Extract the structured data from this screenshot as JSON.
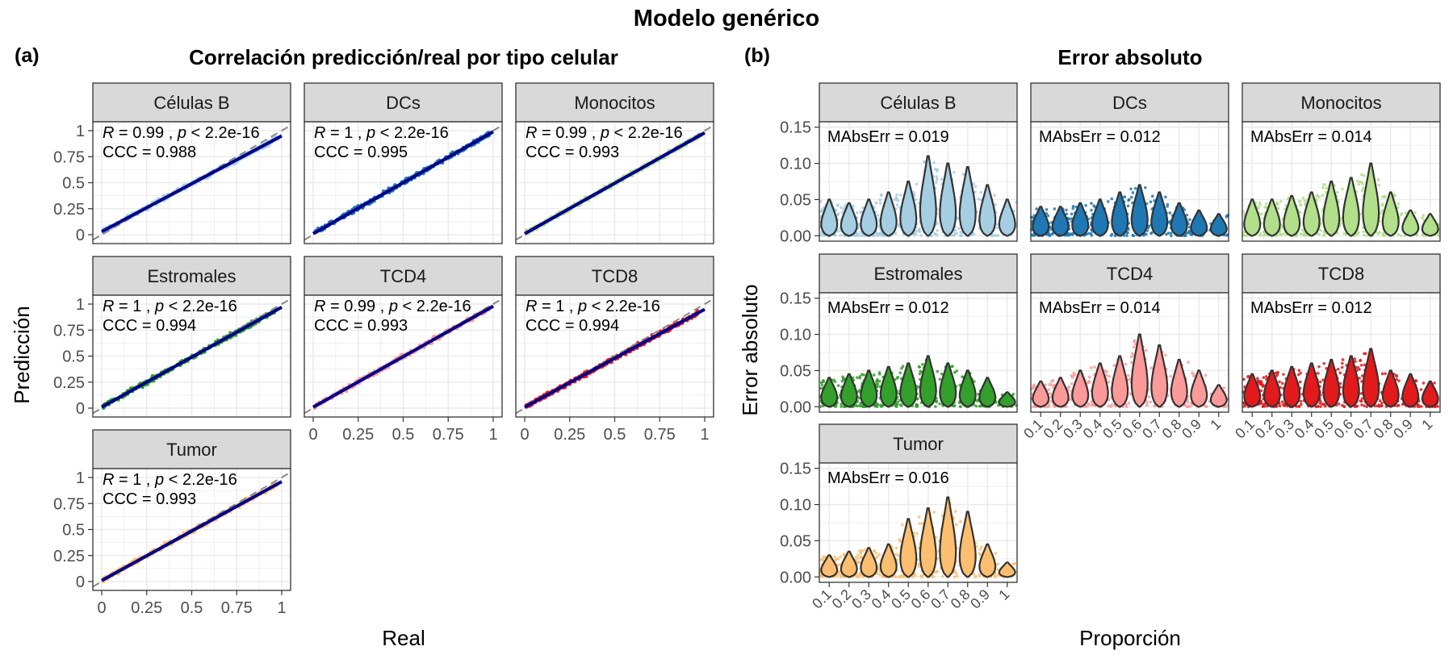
{
  "figure": {
    "title": "Modelo genérico",
    "panel_a_tag": "(a)",
    "panel_b_tag": "(b)"
  },
  "chart_data": [
    {
      "type": "scatter",
      "title": "Correlación predicción/real por tipo celular",
      "xlabel": "Real",
      "ylabel": "Predicción",
      "xlim": [
        0,
        1
      ],
      "ylim": [
        0,
        1
      ],
      "tick_labels": [
        "0",
        "0.25",
        "0.5",
        "0.75",
        "1"
      ],
      "grid": true,
      "identity_line": "dashed grey",
      "fit_line_color": "#00008b",
      "facets": [
        {
          "name": "Células B",
          "color": "#a6cee3",
          "stat_r": "0.99",
          "stat_p": "2.2e-16",
          "ccc": "CCC = 0.988",
          "fit": [
            0.03,
            0.92
          ]
        },
        {
          "name": "DCs",
          "color": "#1f78b4",
          "stat_r": "1",
          "stat_p": "2.2e-16",
          "ccc": "CCC = 0.995",
          "fit": [
            0.01,
            0.98
          ]
        },
        {
          "name": "Monocitos",
          "color": "#b2df8a",
          "stat_r": "0.99",
          "stat_p": "2.2e-16",
          "ccc": "CCC = 0.993",
          "fit": [
            0.01,
            0.97
          ]
        },
        {
          "name": "Estromales",
          "color": "#33a02c",
          "stat_r": "1",
          "stat_p": "2.2e-16",
          "ccc": "CCC = 0.994",
          "fit": [
            0.01,
            0.96
          ]
        },
        {
          "name": "TCD4",
          "color": "#fb9a99",
          "stat_r": "0.99",
          "stat_p": "2.2e-16",
          "ccc": "CCC = 0.993",
          "fit": [
            0.01,
            0.97
          ]
        },
        {
          "name": "TCD8",
          "color": "#e31a1c",
          "stat_r": "1",
          "stat_p": "2.2e-16",
          "ccc": "CCC = 0.994",
          "fit": [
            0.01,
            0.94
          ]
        },
        {
          "name": "Tumor",
          "color": "#fdbf6f",
          "stat_r": "1",
          "stat_p": "2.2e-16",
          "ccc": "CCC = 0.993",
          "fit": [
            0.01,
            0.95
          ]
        }
      ]
    },
    {
      "type": "violin",
      "title": "Error absoluto",
      "xlabel": "Proporción",
      "ylabel": "Error absoluto",
      "ylim": [
        0,
        0.15
      ],
      "y_ticks": [
        "0.00",
        "0.05",
        "0.10",
        "0.15"
      ],
      "categories": [
        "0.1",
        "0.2",
        "0.3",
        "0.4",
        "0.5",
        "0.6",
        "0.7",
        "0.8",
        "0.9",
        "1"
      ],
      "grid": true,
      "facets": [
        {
          "name": "Células B",
          "color": "#a6cee3",
          "metric": "MAbsErr = 0.019",
          "max_values": [
            0.05,
            0.045,
            0.05,
            0.06,
            0.075,
            0.11,
            0.1,
            0.095,
            0.07,
            0.05
          ]
        },
        {
          "name": "DCs",
          "color": "#1f78b4",
          "metric": "MAbsErr = 0.012",
          "max_values": [
            0.04,
            0.04,
            0.045,
            0.05,
            0.06,
            0.07,
            0.06,
            0.045,
            0.035,
            0.03
          ]
        },
        {
          "name": "Monocitos",
          "color": "#b2df8a",
          "metric": "MAbsErr = 0.014",
          "max_values": [
            0.05,
            0.05,
            0.055,
            0.06,
            0.075,
            0.08,
            0.1,
            0.06,
            0.035,
            0.03
          ]
        },
        {
          "name": "Estromales",
          "color": "#33a02c",
          "metric": "MAbsErr = 0.012",
          "max_values": [
            0.04,
            0.045,
            0.05,
            0.055,
            0.06,
            0.07,
            0.06,
            0.05,
            0.04,
            0.02
          ]
        },
        {
          "name": "TCD4",
          "color": "#fb9a99",
          "metric": "MAbsErr = 0.014",
          "max_values": [
            0.035,
            0.04,
            0.05,
            0.06,
            0.07,
            0.1,
            0.085,
            0.065,
            0.05,
            0.03
          ]
        },
        {
          "name": "TCD8",
          "color": "#e31a1c",
          "metric": "MAbsErr = 0.012",
          "max_values": [
            0.045,
            0.05,
            0.055,
            0.06,
            0.065,
            0.07,
            0.08,
            0.05,
            0.045,
            0.035
          ]
        },
        {
          "name": "Tumor",
          "color": "#fdbf6f",
          "metric": "MAbsErr = 0.016",
          "max_values": [
            0.03,
            0.035,
            0.04,
            0.045,
            0.08,
            0.095,
            0.11,
            0.09,
            0.045,
            0.02
          ]
        }
      ]
    }
  ]
}
